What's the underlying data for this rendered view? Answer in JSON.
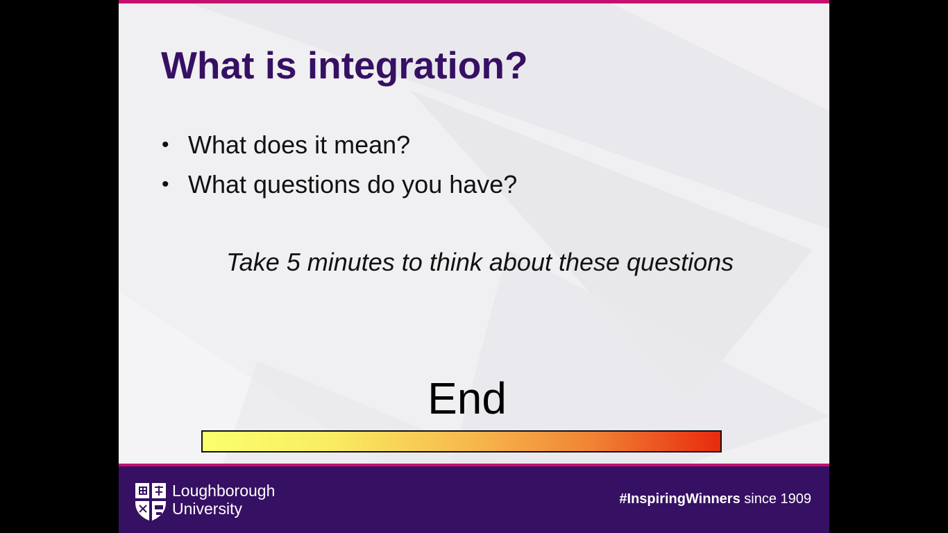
{
  "slide": {
    "title": "What is integration?",
    "bullets": [
      "What does it mean?",
      "What questions do you have?"
    ],
    "bullet_glyph": "•",
    "instruction": "Take 5 minutes to think about these questions",
    "timer_label": "End",
    "timer_progress": 1.0
  },
  "footer": {
    "brand_line1": "Loughborough",
    "brand_line2": "University",
    "tagline_hashtag": "#InspiringWinners",
    "tagline_since": " since 1909",
    "logo_icon": "university-crest-icon"
  },
  "colors": {
    "title": "#361063",
    "accent": "#c4106e",
    "footer_bg": "#361063"
  }
}
